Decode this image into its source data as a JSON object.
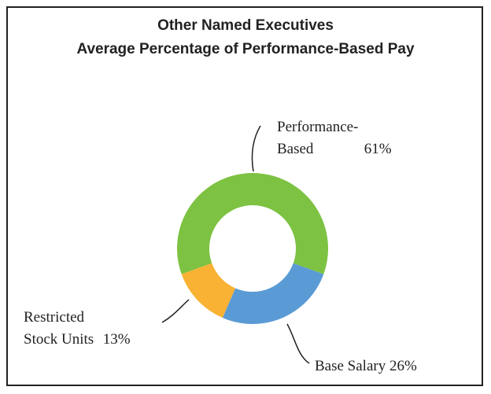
{
  "chart_data": {
    "type": "donut",
    "title": [
      "Other Named Executives",
      "Average Percentage of Performance-Based Pay"
    ],
    "categories": [
      "Performance-Based",
      "Base Salary",
      "Restricted Stock Units"
    ],
    "values": [
      61,
      26,
      13
    ],
    "value_labels": [
      "61%",
      "26%",
      "13%"
    ],
    "colors": [
      "#7dc242",
      "#5b9bd5",
      "#f9b233"
    ]
  }
}
